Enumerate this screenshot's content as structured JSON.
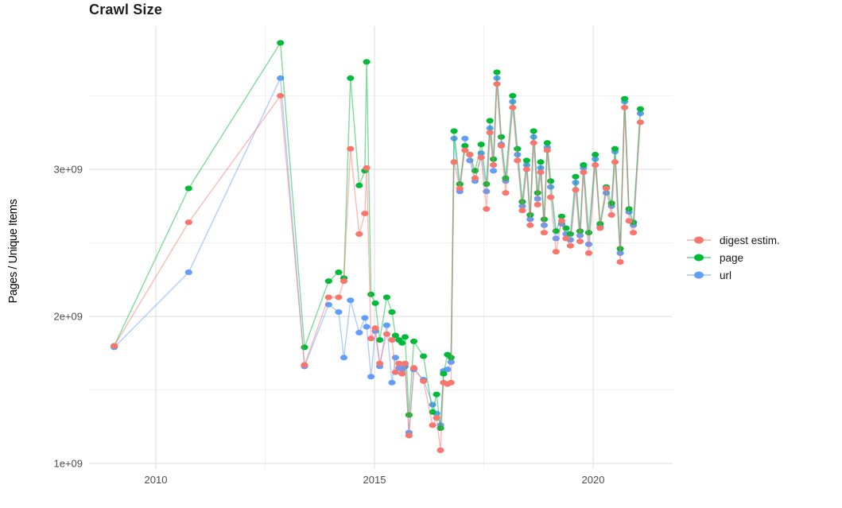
{
  "page": {
    "title": "Crawl Size"
  },
  "axes": {
    "y_label": "Pages / Unique Items",
    "y_tick_labels": [
      "1e+09",
      "2e+09",
      "3e+09"
    ],
    "x_tick_labels": [
      "2010",
      "2015",
      "2020"
    ]
  },
  "legend": {
    "items": [
      {
        "label": "digest estim.",
        "color": "#F8766D"
      },
      {
        "label": "page",
        "color": "#00BA38"
      },
      {
        "label": "url",
        "color": "#619CFF"
      }
    ]
  },
  "style_colors": {
    "digest": "#F8766D",
    "page": "#00BA38",
    "url": "#619CFF",
    "grid_major": "#e3e3e3",
    "grid_minor": "#f1f1f1",
    "tick_text": "#4d4d4d",
    "title_text": "#1f1f1f"
  },
  "chart_data": {
    "type": "line",
    "title": "Crawl Size",
    "xlabel": "",
    "ylabel": "Pages / Unique Items",
    "y_unit": "pages / unique items (value = billions, i.e. ×1e9)",
    "x_unit": "calendar year (decimal, one point per crawl)",
    "grid": "major and minor, light gray on white",
    "legend_position": "right",
    "xlim": [
      2008.45,
      2021.85
    ],
    "ylim_billions": [
      0.96,
      3.97
    ],
    "x_major_ticks": [
      2010,
      2015,
      2020
    ],
    "x_minor_ticks": [
      2012.5,
      2017.5
    ],
    "y_major_ticks_billions": [
      1,
      2,
      3
    ],
    "y_minor_ticks_billions": [
      1.5,
      2.5,
      3.5
    ],
    "y_tick_labels": [
      "1e+09",
      "2e+09",
      "3e+09"
    ],
    "x_tick_labels": [
      "2010",
      "2015",
      "2020"
    ],
    "x": [
      2009.05,
      2010.75,
      2012.85,
      2013.4,
      2013.95,
      2014.18,
      2014.3,
      2014.45,
      2014.65,
      2014.78,
      2014.82,
      2014.92,
      2015.02,
      2015.12,
      2015.28,
      2015.4,
      2015.48,
      2015.56,
      2015.63,
      2015.7,
      2015.79,
      2015.9,
      2016.12,
      2016.33,
      2016.42,
      2016.51,
      2016.58,
      2016.67,
      2016.75,
      2016.82,
      2016.95,
      2017.07,
      2017.18,
      2017.3,
      2017.44,
      2017.56,
      2017.64,
      2017.72,
      2017.8,
      2017.9,
      2018.0,
      2018.16,
      2018.27,
      2018.38,
      2018.48,
      2018.56,
      2018.64,
      2018.73,
      2018.8,
      2018.88,
      2018.95,
      2019.03,
      2019.15,
      2019.28,
      2019.38,
      2019.48,
      2019.6,
      2019.7,
      2019.78,
      2019.9,
      2020.05,
      2020.16,
      2020.3,
      2020.42,
      2020.5,
      2020.62,
      2020.72,
      2020.82,
      2020.92,
      2021.08
    ],
    "series": [
      {
        "name": "digest estim.",
        "color": "#F8766D",
        "z": 3,
        "values_billions": [
          1.8,
          2.64,
          3.5,
          1.67,
          2.13,
          2.13,
          2.24,
          3.14,
          2.56,
          2.7,
          3.01,
          1.85,
          1.92,
          1.68,
          1.88,
          1.84,
          1.62,
          1.68,
          1.61,
          1.68,
          1.19,
          1.65,
          1.56,
          1.26,
          1.31,
          1.09,
          1.55,
          1.54,
          1.55,
          3.05,
          2.87,
          3.13,
          3.1,
          2.94,
          3.08,
          2.73,
          3.25,
          3.03,
          3.58,
          3.16,
          2.84,
          3.42,
          3.06,
          2.72,
          3.0,
          2.62,
          3.18,
          2.76,
          2.98,
          2.57,
          3.13,
          2.81,
          2.44,
          2.65,
          2.53,
          2.48,
          2.86,
          2.51,
          2.98,
          2.43,
          3.03,
          2.6,
          2.87,
          2.69,
          3.05,
          2.37,
          3.42,
          2.65,
          2.57,
          3.32
        ]
      },
      {
        "name": "page",
        "color": "#00BA38",
        "z": 2,
        "values_billions": [
          1.8,
          2.87,
          3.86,
          1.79,
          2.24,
          2.3,
          2.26,
          3.62,
          2.89,
          2.99,
          3.73,
          2.15,
          2.09,
          1.84,
          2.13,
          2.03,
          1.87,
          1.84,
          1.82,
          1.86,
          1.33,
          1.83,
          1.73,
          1.35,
          1.47,
          1.24,
          1.61,
          1.74,
          1.72,
          3.26,
          2.9,
          3.16,
          3.1,
          2.99,
          3.17,
          2.9,
          3.33,
          3.07,
          3.66,
          3.22,
          2.94,
          3.5,
          3.14,
          2.78,
          3.06,
          2.69,
          3.26,
          2.84,
          3.05,
          2.66,
          3.18,
          2.92,
          2.58,
          2.68,
          2.6,
          2.56,
          2.95,
          2.58,
          3.03,
          2.57,
          3.1,
          2.63,
          2.88,
          2.77,
          3.14,
          2.46,
          3.48,
          2.73,
          2.64,
          3.41
        ]
      },
      {
        "name": "url",
        "color": "#619CFF",
        "z": 1,
        "values_billions": [
          1.79,
          2.3,
          3.62,
          1.66,
          2.08,
          2.03,
          1.72,
          2.11,
          1.89,
          1.99,
          1.93,
          1.59,
          1.9,
          1.66,
          1.94,
          1.55,
          1.72,
          1.65,
          1.64,
          1.66,
          1.21,
          1.64,
          1.57,
          1.4,
          1.34,
          1.26,
          1.63,
          1.64,
          1.69,
          3.21,
          2.85,
          3.21,
          3.06,
          2.92,
          3.11,
          2.85,
          3.28,
          2.99,
          3.62,
          3.17,
          2.92,
          3.46,
          3.1,
          2.75,
          3.03,
          2.66,
          3.22,
          2.8,
          3.01,
          2.62,
          3.15,
          2.88,
          2.53,
          2.63,
          2.56,
          2.52,
          2.91,
          2.55,
          3.01,
          2.49,
          3.07,
          2.61,
          2.84,
          2.75,
          3.12,
          2.43,
          3.46,
          2.71,
          2.62,
          3.38
        ]
      }
    ]
  }
}
